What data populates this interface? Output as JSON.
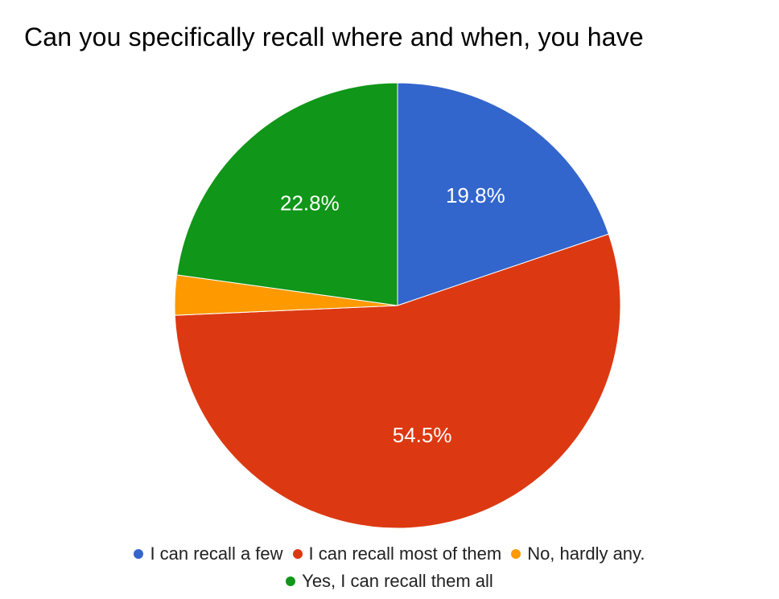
{
  "chart_data": {
    "type": "pie",
    "title": "Can you specifically recall where and when, you have",
    "categories": [
      "I can recall a few",
      "I can recall most of them",
      "No, hardly any.",
      "Yes, I can recall them all"
    ],
    "values": [
      19.8,
      54.5,
      2.9,
      22.8
    ],
    "labels": [
      "19.8%",
      "54.5%",
      "",
      "22.8%"
    ],
    "colors": [
      "#3366cc",
      "#dc3912",
      "#ff9900",
      "#109618"
    ],
    "legend_position": "bottom"
  }
}
